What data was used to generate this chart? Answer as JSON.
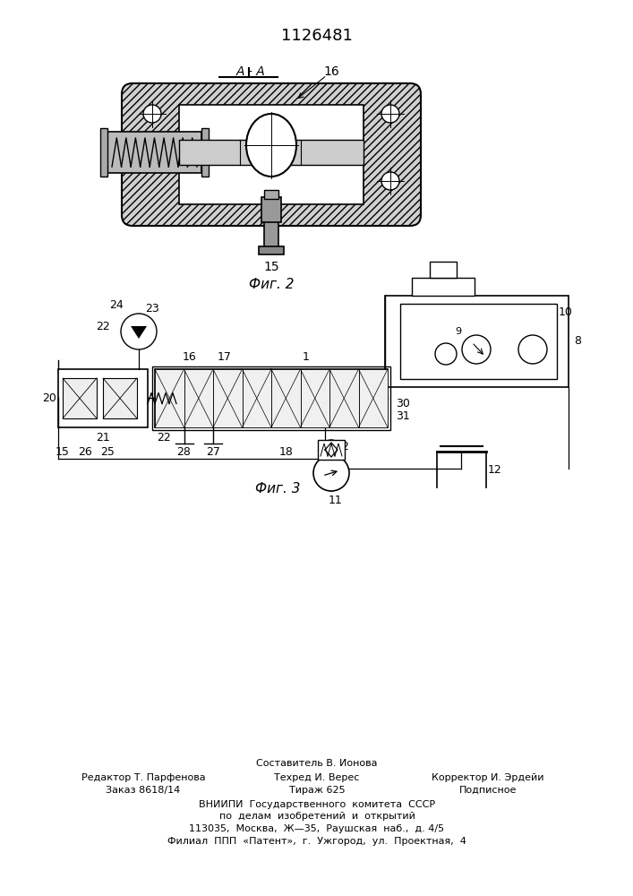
{
  "title": "1126481",
  "fig2_caption": "Фиг. 2",
  "fig3_caption": "Фиг. 3",
  "footer_composer": "Составитель В. Ионова",
  "footer_editor": "Редактор Т. Парфенова",
  "footer_tech": "Техред И. Верес",
  "footer_corrector": "Корректор И. Эрдейи",
  "footer_order": "Заказ 8618/14",
  "footer_tirazh": "Тираж 625",
  "footer_podpisnoe": "Подписное",
  "footer_vniipи": "ВНИИПИ  Государственного  комитета  СССР",
  "footer_po": "по  делам  изобретений  и  открытий",
  "footer_addr1": "113035,  Москва,  Ж—35,  Раушская  наб.,  д. 4/5",
  "footer_addr2": "Филиал  ППП  «Патент»,  г.  Ужгород,  ул.  Проектная,  4",
  "bg_color": "#ffffff",
  "lc": "#000000"
}
